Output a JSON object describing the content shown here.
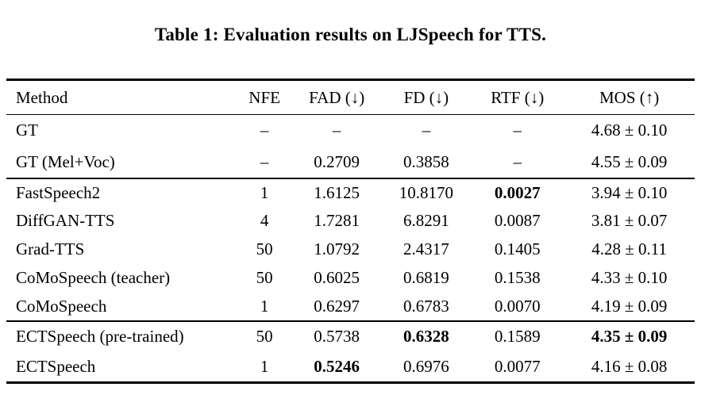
{
  "title": "Table 1: Evaluation results on LJSpeech for TTS.",
  "columns": {
    "method": "Method",
    "nfe": "NFE",
    "fad": "FAD (↓)",
    "fd": "FD (↓)",
    "rtf": "RTF (↓)",
    "mos": "MOS (↑)"
  },
  "rows": [
    {
      "method": "GT",
      "nfe": "–",
      "fad": "–",
      "fd": "–",
      "rtf": "–",
      "mos": "4.68 ± 0.10",
      "bold": []
    },
    {
      "method": "GT (Mel+Voc)",
      "nfe": "–",
      "fad": "0.2709",
      "fd": "0.3858",
      "rtf": "–",
      "mos": "4.55 ± 0.09",
      "bold": []
    },
    {
      "method": "FastSpeech2",
      "nfe": "1",
      "fad": "1.6125",
      "fd": "10.8170",
      "rtf": "0.0027",
      "mos": "3.94 ± 0.10",
      "bold": [
        "rtf"
      ]
    },
    {
      "method": "DiffGAN-TTS",
      "nfe": "4",
      "fad": "1.7281",
      "fd": "6.8291",
      "rtf": "0.0087",
      "mos": "3.81 ± 0.07",
      "bold": []
    },
    {
      "method": "Grad-TTS",
      "nfe": "50",
      "fad": "1.0792",
      "fd": "2.4317",
      "rtf": "0.1405",
      "mos": "4.28 ± 0.11",
      "bold": []
    },
    {
      "method": "CoMoSpeech (teacher)",
      "nfe": "50",
      "fad": "0.6025",
      "fd": "0.6819",
      "rtf": "0.1538",
      "mos": "4.33 ± 0.10",
      "bold": []
    },
    {
      "method": "CoMoSpeech",
      "nfe": "1",
      "fad": "0.6297",
      "fd": "0.6783",
      "rtf": "0.0070",
      "mos": "4.19 ± 0.09",
      "bold": []
    },
    {
      "method": "ECTSpeech (pre-trained)",
      "nfe": "50",
      "fad": "0.5738",
      "fd": "0.6328",
      "rtf": "0.1589",
      "mos": "4.35 ± 0.09",
      "bold": [
        "fd",
        "mos"
      ]
    },
    {
      "method": "ECTSpeech",
      "nfe": "1",
      "fad": "0.5246",
      "fd": "0.6976",
      "rtf": "0.0077",
      "mos": "4.16 ± 0.08",
      "bold": [
        "fad"
      ]
    }
  ],
  "colors": {
    "text": "#000000",
    "rule": "#000000",
    "background": "#ffffff"
  }
}
